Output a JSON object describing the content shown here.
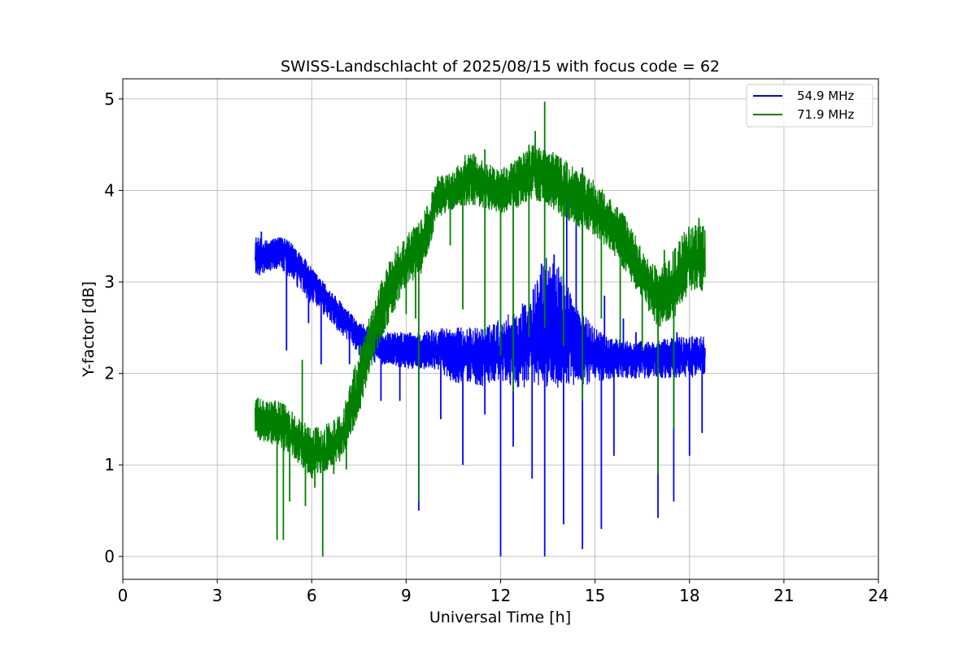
{
  "chart_data": {
    "type": "line",
    "title": "SWISS-Landschlacht of 2025/08/15 with focus code = 62",
    "xlabel": "Universal Time [h]",
    "ylabel": "Y-factor [dB]",
    "xlim": [
      0,
      24
    ],
    "ylim": [
      -0.25,
      5.22
    ],
    "x_ticks": [
      0,
      3,
      6,
      9,
      12,
      15,
      18,
      21,
      24
    ],
    "x_tick_labels": [
      "0",
      "3",
      "6",
      "9",
      "12",
      "15",
      "18",
      "21",
      "24"
    ],
    "y_ticks": [
      0,
      1,
      2,
      3,
      4,
      5
    ],
    "y_tick_labels": [
      "0",
      "1",
      "2",
      "3",
      "4",
      "5"
    ],
    "grid": true,
    "legend_position": "top-right",
    "series": [
      {
        "name": "54.9 MHz",
        "color": "#0000ff",
        "x": [
          4.2,
          4.5,
          5.0,
          5.5,
          6.0,
          6.5,
          7.0,
          7.5,
          8.0,
          8.5,
          9.0,
          9.5,
          10.0,
          10.5,
          11.0,
          11.5,
          12.0,
          12.5,
          13.0,
          13.5,
          14.0,
          14.5,
          15.0,
          15.5,
          16.0,
          16.5,
          17.0,
          17.5,
          18.0,
          18.5
        ],
        "center": [
          3.25,
          3.3,
          3.35,
          3.2,
          3.0,
          2.8,
          2.6,
          2.4,
          2.3,
          2.25,
          2.25,
          2.25,
          2.3,
          2.25,
          2.2,
          2.2,
          2.25,
          2.25,
          2.3,
          2.4,
          2.4,
          2.3,
          2.25,
          2.2,
          2.2,
          2.2,
          2.2,
          2.2,
          2.2,
          2.2
        ],
        "band_low": [
          3.05,
          3.1,
          3.15,
          2.95,
          2.75,
          2.6,
          2.4,
          2.2,
          2.1,
          2.1,
          2.05,
          2.05,
          2.05,
          1.9,
          1.9,
          1.85,
          1.9,
          1.85,
          1.85,
          1.85,
          1.85,
          1.85,
          1.9,
          1.95,
          1.95,
          1.95,
          1.95,
          1.95,
          1.95,
          2.0
        ],
        "band_high": [
          3.5,
          3.45,
          3.5,
          3.4,
          3.15,
          2.95,
          2.75,
          2.55,
          2.5,
          2.45,
          2.45,
          2.45,
          2.5,
          2.5,
          2.5,
          2.5,
          2.6,
          2.7,
          2.9,
          3.3,
          3.1,
          2.7,
          2.5,
          2.4,
          2.35,
          2.35,
          2.35,
          2.4,
          2.4,
          2.45
        ],
        "dips": [
          [
            5.2,
            2.25
          ],
          [
            5.9,
            2.55
          ],
          [
            6.3,
            2.1
          ],
          [
            7.2,
            2.1
          ],
          [
            8.2,
            1.7
          ],
          [
            8.8,
            1.7
          ],
          [
            9.4,
            0.5
          ],
          [
            10.1,
            1.5
          ],
          [
            10.8,
            1.0
          ],
          [
            11.5,
            1.55
          ],
          [
            12.0,
            0.0
          ],
          [
            12.4,
            1.2
          ],
          [
            13.0,
            0.85
          ],
          [
            13.4,
            0.0
          ],
          [
            14.0,
            0.35
          ],
          [
            14.6,
            0.08
          ],
          [
            15.2,
            0.3
          ],
          [
            15.6,
            1.1
          ],
          [
            17.0,
            0.42
          ],
          [
            17.5,
            0.6
          ],
          [
            18.0,
            1.1
          ],
          [
            18.4,
            1.35
          ]
        ],
        "spikes": [
          [
            4.4,
            3.55
          ],
          [
            13.3,
            3.2
          ],
          [
            13.7,
            3.3
          ],
          [
            14.1,
            3.9
          ],
          [
            14.4,
            3.85
          ],
          [
            14.6,
            4.25
          ],
          [
            15.3,
            2.85
          ],
          [
            15.9,
            2.6
          ],
          [
            16.3,
            2.45
          ],
          [
            17.6,
            2.45
          ]
        ]
      },
      {
        "name": "71.9 MHz",
        "color": "#008000",
        "x": [
          4.2,
          4.5,
          5.0,
          5.5,
          6.0,
          6.5,
          7.0,
          7.5,
          8.0,
          8.5,
          9.0,
          9.5,
          10.0,
          10.5,
          11.0,
          11.5,
          12.0,
          12.5,
          13.0,
          13.5,
          14.0,
          14.5,
          15.0,
          15.5,
          16.0,
          16.5,
          17.0,
          17.5,
          18.0,
          18.5
        ],
        "center": [
          1.5,
          1.45,
          1.45,
          1.3,
          1.1,
          1.15,
          1.3,
          1.9,
          2.45,
          2.9,
          3.2,
          3.35,
          3.95,
          4.0,
          4.1,
          4.05,
          4.0,
          4.05,
          4.2,
          4.15,
          4.0,
          3.9,
          3.8,
          3.6,
          3.4,
          3.1,
          2.8,
          2.9,
          3.3,
          3.3
        ],
        "band_low": [
          1.3,
          1.25,
          1.2,
          1.05,
          0.85,
          0.95,
          1.05,
          1.55,
          2.2,
          2.6,
          2.95,
          3.1,
          3.7,
          3.8,
          3.85,
          3.8,
          3.75,
          3.8,
          3.9,
          3.85,
          3.7,
          3.6,
          3.5,
          3.35,
          3.1,
          2.8,
          2.5,
          2.6,
          2.9,
          2.9
        ],
        "band_high": [
          1.75,
          1.7,
          1.7,
          1.55,
          1.4,
          1.45,
          1.6,
          2.3,
          2.8,
          3.3,
          3.5,
          3.7,
          4.15,
          4.2,
          4.45,
          4.3,
          4.25,
          4.35,
          4.5,
          4.45,
          4.35,
          4.2,
          4.1,
          3.9,
          3.7,
          3.35,
          3.15,
          3.35,
          3.65,
          3.6
        ],
        "dips": [
          [
            4.9,
            0.18
          ],
          [
            5.1,
            0.18
          ],
          [
            5.3,
            0.6
          ],
          [
            5.8,
            0.55
          ],
          [
            6.1,
            0.75
          ],
          [
            6.35,
            0.0
          ],
          [
            6.7,
            0.9
          ],
          [
            7.1,
            0.95
          ],
          [
            9.0,
            2.65
          ],
          [
            9.3,
            2.6
          ],
          [
            9.4,
            0.6
          ],
          [
            10.4,
            3.4
          ],
          [
            10.8,
            2.7
          ],
          [
            11.5,
            2.4
          ],
          [
            12.0,
            2.2
          ],
          [
            12.4,
            1.8
          ],
          [
            12.9,
            2.4
          ],
          [
            13.4,
            2.5
          ],
          [
            14.0,
            2.3
          ],
          [
            14.6,
            1.7
          ],
          [
            15.2,
            2.6
          ],
          [
            15.8,
            2.3
          ],
          [
            16.5,
            2.25
          ],
          [
            17.0,
            0.9
          ],
          [
            17.5,
            1.4
          ]
        ],
        "spikes": [
          [
            5.7,
            2.15
          ],
          [
            11.5,
            4.45
          ],
          [
            12.9,
            4.5
          ],
          [
            13.1,
            4.65
          ],
          [
            13.4,
            4.97
          ],
          [
            14.6,
            4.25
          ],
          [
            17.2,
            3.35
          ],
          [
            18.3,
            3.7
          ]
        ]
      }
    ]
  }
}
